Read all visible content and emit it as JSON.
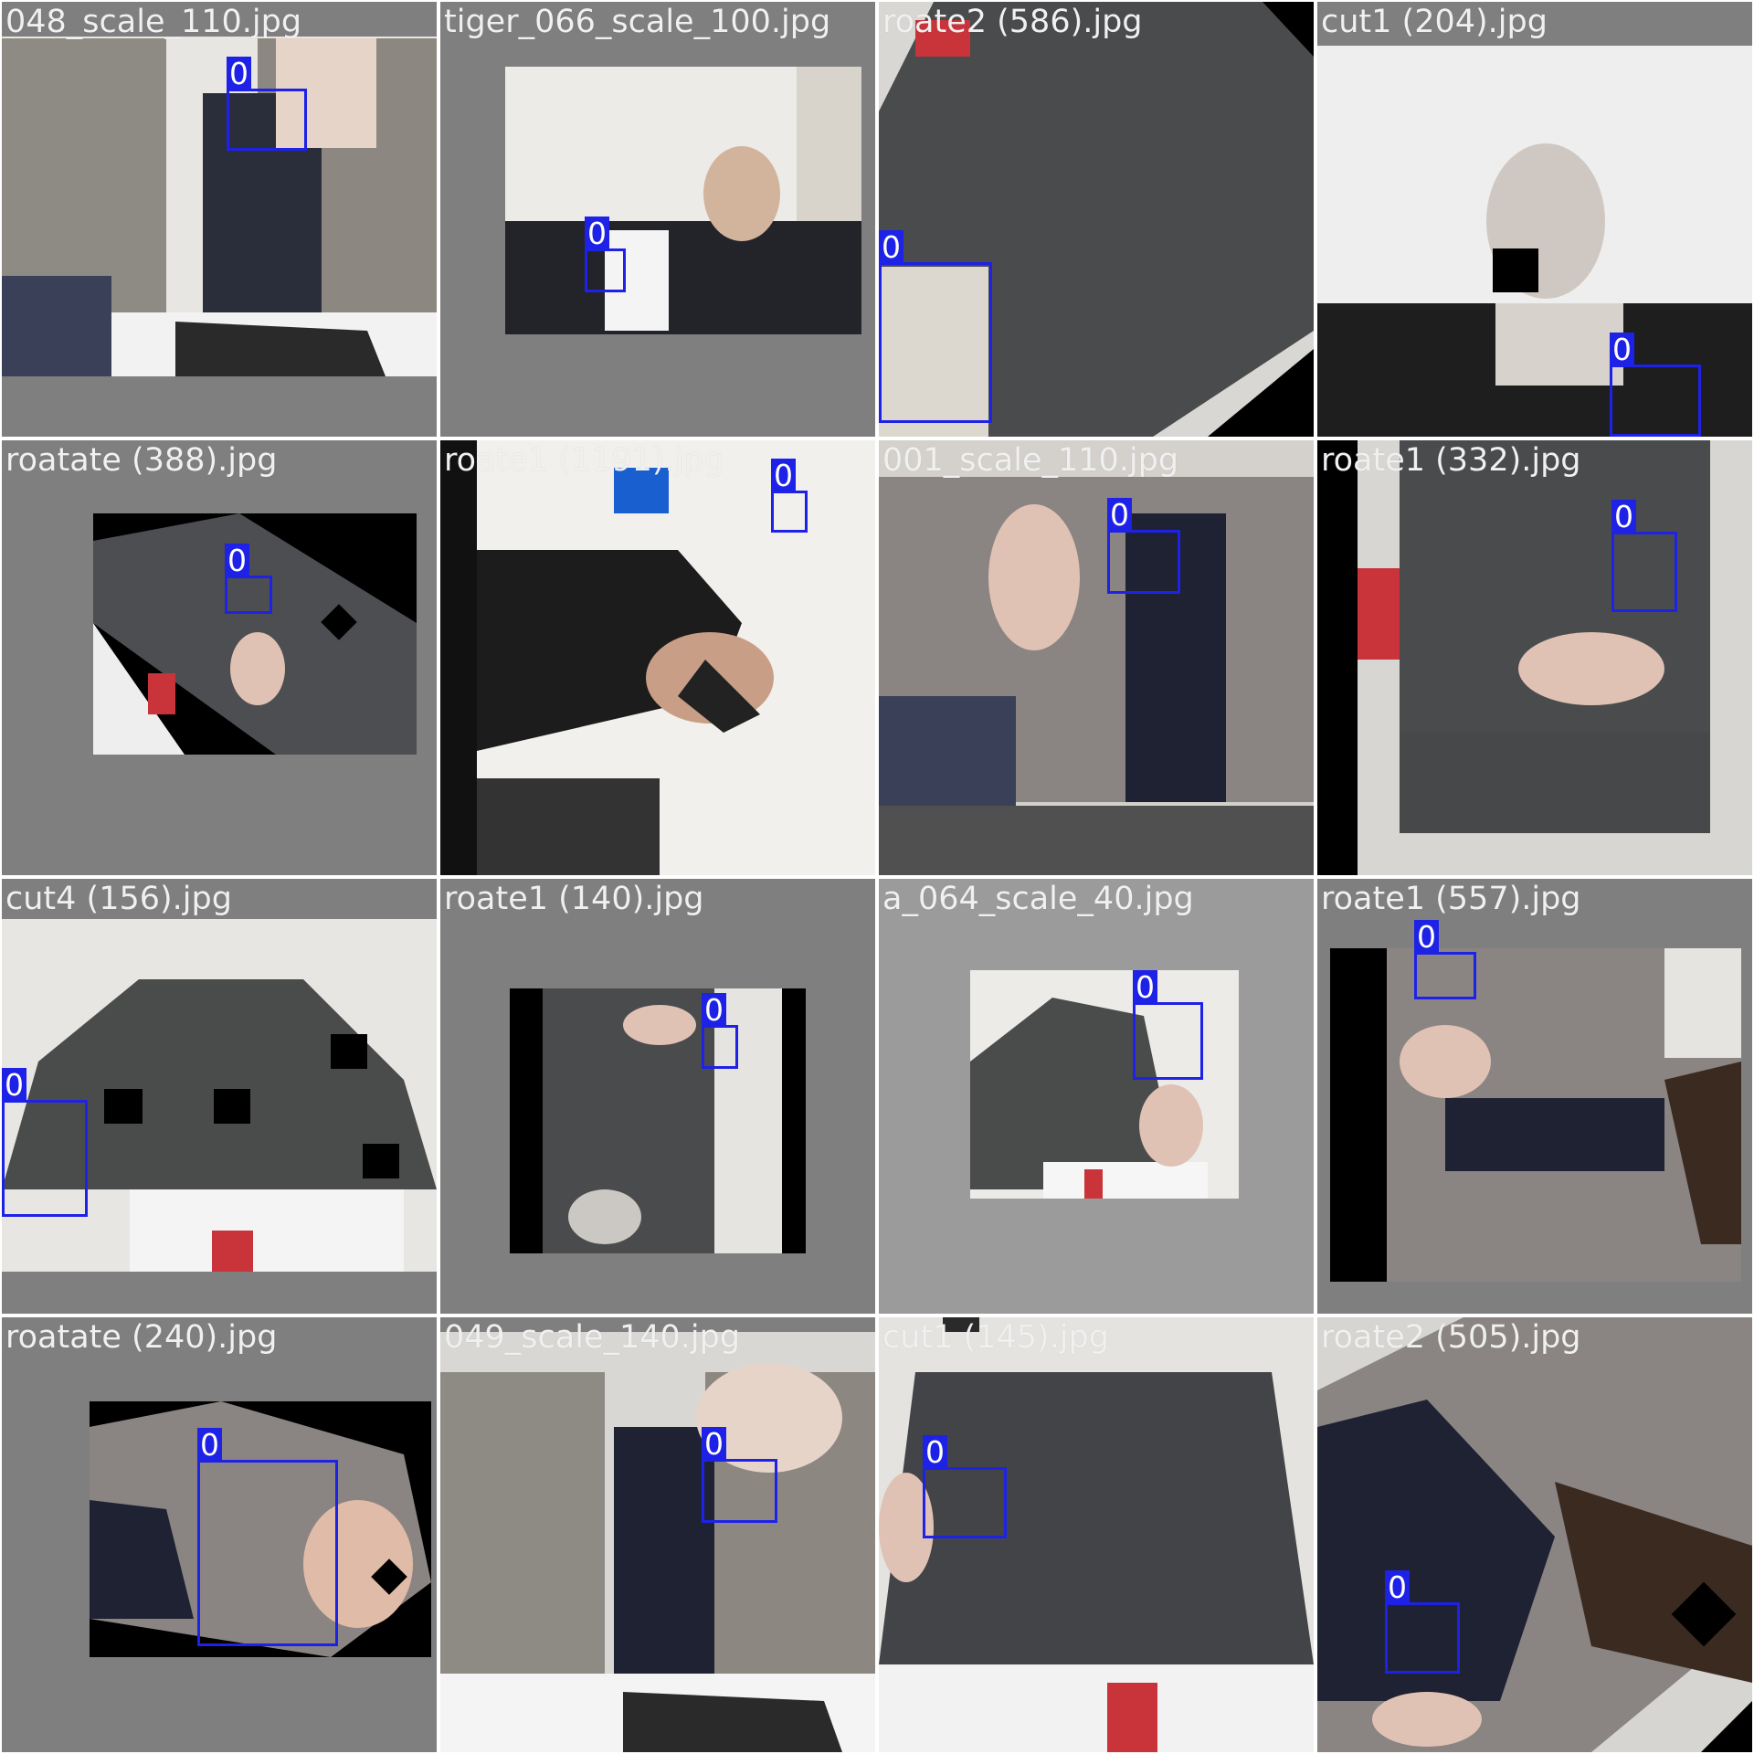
{
  "mosaic": {
    "box_color": "#1e22e6",
    "tiles": [
      {
        "filename": "048_scale_110.jpg",
        "label": "0"
      },
      {
        "filename": "tiger_066_scale_100.jpg",
        "label": "0"
      },
      {
        "filename": "roate2 (586).jpg",
        "label": "0"
      },
      {
        "filename": "cut1 (204).jpg",
        "label": "0"
      },
      {
        "filename": "roatate (388).jpg",
        "label": "0"
      },
      {
        "filename": "roate1 (1191).jpg",
        "label": "0"
      },
      {
        "filename": "001_scale_110.jpg",
        "label": "0"
      },
      {
        "filename": "roate1 (332).jpg",
        "label": "0"
      },
      {
        "filename": "cut4 (156).jpg",
        "label": "0"
      },
      {
        "filename": "roate1 (140).jpg",
        "label": "0"
      },
      {
        "filename": "a_064_scale_40.jpg",
        "label": "0"
      },
      {
        "filename": "roate1 (557).jpg",
        "label": "0"
      },
      {
        "filename": "roatate (240).jpg",
        "label": "0"
      },
      {
        "filename": "049_scale_140.jpg",
        "label": "0"
      },
      {
        "filename": "cut1 (145).jpg",
        "label": "0"
      },
      {
        "filename": "roate2 (505).jpg",
        "label": "0"
      }
    ]
  }
}
